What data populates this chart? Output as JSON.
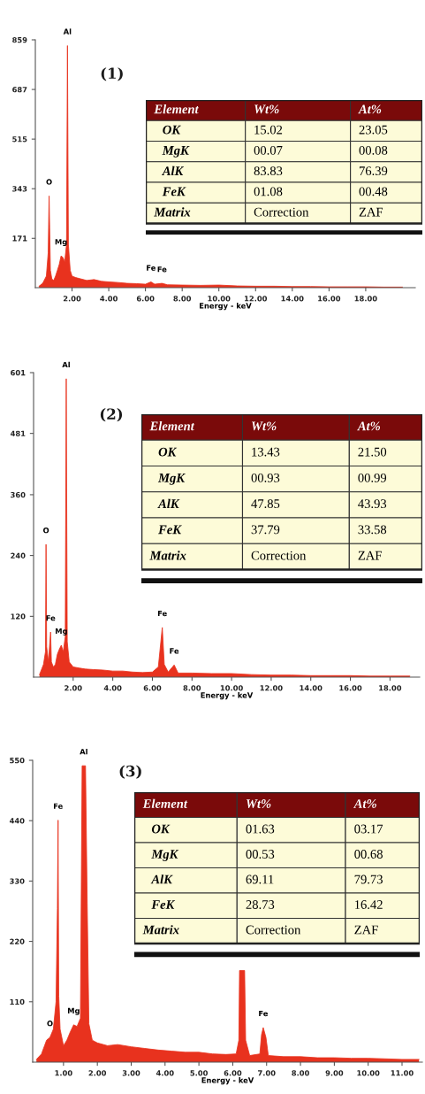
{
  "chart_data": [
    {
      "type": "area",
      "xlabel": "Energy - keV",
      "color": "#e8321e",
      "xlim": [
        0,
        20.7
      ],
      "ylim": [
        0,
        859
      ],
      "xticks": [
        {
          "value": 2,
          "label": "2.00"
        },
        {
          "value": 4,
          "label": "4.00"
        },
        {
          "value": 6,
          "label": "6.00"
        },
        {
          "value": 8,
          "label": "8.00"
        },
        {
          "value": 10,
          "label": "10.00"
        },
        {
          "value": 12,
          "label": "12.00"
        },
        {
          "value": 14,
          "label": "14.00"
        },
        {
          "value": 16,
          "label": "16.00"
        },
        {
          "value": 18,
          "label": "18.00"
        }
      ],
      "yticks": [
        171,
        343,
        515,
        687,
        859
      ],
      "x": [
        0.2,
        0.4,
        0.6,
        0.7,
        0.75,
        0.78,
        0.82,
        0.9,
        1.0,
        1.1,
        1.2,
        1.3,
        1.4,
        1.5,
        1.6,
        1.7,
        1.75,
        1.8,
        1.9,
        2.0,
        2.2,
        2.5,
        2.8,
        3.2,
        3.6,
        4.0,
        4.5,
        5.0,
        5.5,
        6.0,
        6.3,
        6.5,
        6.9,
        7.2,
        8.0,
        9.0,
        10.0,
        11.0,
        12.0,
        13.0,
        14.0,
        15.0,
        16.0,
        17.0,
        18.0,
        19.0,
        20.0
      ],
      "values": [
        5,
        15,
        40,
        120,
        318,
        208,
        60,
        30,
        25,
        40,
        60,
        80,
        110,
        105,
        90,
        150,
        839,
        150,
        60,
        40,
        35,
        30,
        25,
        28,
        22,
        20,
        18,
        15,
        14,
        12,
        20,
        12,
        15,
        10,
        9,
        8,
        9,
        6,
        5,
        5,
        4,
        4,
        3,
        3,
        3,
        2,
        2
      ],
      "annotations": [
        "(1)",
        {
          "text": "Al",
          "x": 1.75,
          "y": 839
        },
        {
          "text": "O",
          "x": 0.75,
          "y": 318
        },
        {
          "text": "Mg",
          "x": 1.4,
          "y": 110
        },
        {
          "text": "Fe",
          "x": 6.3,
          "y": 20
        },
        {
          "text": "Fe",
          "x": 6.9,
          "y": 15
        }
      ]
    },
    {
      "type": "other",
      "annotations": [
        "Element",
        "Wt%",
        "At%",
        "OK",
        "15.02",
        "23.05",
        "MgK",
        "00.07",
        "00.08",
        "AlK",
        "83.83",
        "76.39",
        "FeK",
        "01.08",
        "00.48",
        "Matrix",
        "Correction",
        "ZAF"
      ]
    },
    {
      "type": "area",
      "xlabel": "Energy - keV",
      "color": "#e8321e",
      "xlim": [
        0,
        19.5
      ],
      "ylim": [
        0,
        601
      ],
      "xticks": [
        {
          "value": 2,
          "label": "2.00"
        },
        {
          "value": 4,
          "label": "4.00"
        },
        {
          "value": 6,
          "label": "6.00"
        },
        {
          "value": 8,
          "label": "8.00"
        },
        {
          "value": 10,
          "label": "10.00"
        },
        {
          "value": 12,
          "label": "12.00"
        },
        {
          "value": 14,
          "label": "14.00"
        },
        {
          "value": 16,
          "label": "16.00"
        },
        {
          "value": 18,
          "label": "18.00"
        }
      ],
      "yticks": [
        120,
        240,
        360,
        481,
        601
      ],
      "x": [
        0.3,
        0.5,
        0.6,
        0.63,
        0.66,
        0.75,
        0.86,
        0.9,
        1.0,
        1.1,
        1.2,
        1.3,
        1.4,
        1.5,
        1.6,
        1.65,
        1.7,
        1.8,
        2.0,
        2.3,
        2.6,
        3.0,
        3.5,
        4.0,
        4.5,
        5.0,
        5.5,
        6.0,
        6.3,
        6.5,
        6.6,
        6.8,
        7.1,
        7.3,
        8.0,
        9.0,
        10.0,
        11.0,
        12.0,
        13.0,
        14.0,
        15.0,
        16.0,
        17.0,
        18.0,
        19.0
      ],
      "values": [
        5,
        25,
        50,
        262,
        60,
        30,
        89,
        30,
        20,
        25,
        45,
        55,
        63,
        50,
        80,
        589,
        70,
        30,
        20,
        18,
        16,
        15,
        14,
        12,
        12,
        10,
        9,
        10,
        20,
        98,
        25,
        10,
        24,
        8,
        8,
        7,
        7,
        5,
        4,
        4,
        3,
        3,
        3,
        2,
        2,
        2
      ],
      "annotations": [
        "(2)",
        {
          "text": "Al",
          "x": 1.65,
          "y": 589
        },
        {
          "text": "O",
          "x": 0.63,
          "y": 262
        },
        {
          "text": "Fe",
          "x": 0.86,
          "y": 89
        },
        {
          "text": "Mg",
          "x": 1.4,
          "y": 63
        },
        {
          "text": "Fe",
          "x": 6.5,
          "y": 98
        },
        {
          "text": "Fe",
          "x": 7.1,
          "y": 24
        }
      ]
    },
    {
      "type": "other",
      "annotations": [
        "Element",
        "Wt%",
        "At%",
        "OK",
        "13.43",
        "21.50",
        "MgK",
        "00.93",
        "00.99",
        "AlK",
        "47.85",
        "43.93",
        "FeK",
        "37.79",
        "33.58",
        "Matrix",
        "Correction",
        "ZAF"
      ]
    },
    {
      "type": "area",
      "xlabel": "Energy - keV",
      "color": "#e8321e",
      "xlim": [
        0.09,
        11.6
      ],
      "ylim": [
        0,
        550
      ],
      "xticks": [
        {
          "value": 1,
          "label": "1.00"
        },
        {
          "value": 2,
          "label": "2.00"
        },
        {
          "value": 3,
          "label": "3.00"
        },
        {
          "value": 4,
          "label": "4.00"
        },
        {
          "value": 5,
          "label": "5.00"
        },
        {
          "value": 6,
          "label": "6.00"
        },
        {
          "value": 7,
          "label": "7.00"
        },
        {
          "value": 8,
          "label": "8.00"
        },
        {
          "value": 9,
          "label": "9.00"
        },
        {
          "value": 10,
          "label": "10.00"
        },
        {
          "value": 11,
          "label": "11.00"
        }
      ],
      "yticks": [
        110,
        220,
        330,
        440,
        550
      ],
      "x": [
        0.2,
        0.35,
        0.5,
        0.6,
        0.7,
        0.78,
        0.82,
        0.84,
        0.86,
        0.9,
        1.0,
        1.1,
        1.2,
        1.3,
        1.4,
        1.5,
        1.55,
        1.65,
        1.7,
        1.75,
        1.85,
        2.0,
        2.3,
        2.6,
        3.0,
        3.4,
        3.8,
        4.2,
        4.6,
        5.0,
        5.4,
        5.8,
        6.1,
        6.18,
        6.2,
        6.35,
        6.38,
        6.5,
        6.8,
        6.85,
        6.9,
        6.98,
        7.05,
        7.5,
        8.0,
        8.5,
        9.0,
        9.5,
        10.0,
        10.5,
        11.0,
        11.5
      ],
      "values": [
        5,
        15,
        40,
        45,
        60,
        110,
        280,
        441,
        120,
        60,
        30,
        40,
        55,
        68,
        65,
        80,
        540,
        540,
        290,
        70,
        40,
        35,
        30,
        32,
        28,
        25,
        22,
        20,
        18,
        18,
        15,
        14,
        15,
        40,
        167,
        167,
        40,
        12,
        15,
        50,
        63,
        45,
        12,
        10,
        10,
        8,
        8,
        7,
        7,
        6,
        5,
        5
      ],
      "annotations": [
        "(3)",
        {
          "text": "Al",
          "x": 1.6,
          "y": 540
        },
        {
          "text": "Fe",
          "x": 0.84,
          "y": 441
        },
        {
          "text": "O",
          "x": 0.6,
          "y": 45
        },
        {
          "text": "Mg",
          "x": 1.3,
          "y": 68
        },
        {
          "text": "Fe",
          "x": 6.9,
          "y": 63
        }
      ]
    },
    {
      "type": "other",
      "annotations": [
        "Element",
        "Wt%",
        "At%",
        "OK",
        "01.63",
        "03.17",
        "MgK",
        "00.53",
        "00.68",
        "AlK",
        "69.11",
        "79.73",
        "FeK",
        "28.73",
        "16.42",
        "Matrix",
        "Correction",
        "ZAF"
      ]
    }
  ]
}
